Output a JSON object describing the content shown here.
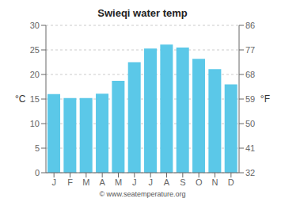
{
  "chart_data": {
    "type": "bar",
    "title": "Swieqi water temp",
    "categories": [
      "J",
      "F",
      "M",
      "A",
      "M",
      "J",
      "J",
      "A",
      "S",
      "O",
      "N",
      "D"
    ],
    "values": [
      16.0,
      15.2,
      15.2,
      16.1,
      18.7,
      22.5,
      25.3,
      26.1,
      25.5,
      23.2,
      21.1,
      18.0
    ],
    "color": "#5bc8e8",
    "ylim": [
      0,
      30
    ],
    "yticks": [
      0,
      5,
      10,
      15,
      20,
      25,
      30
    ],
    "y2lim": [
      32,
      86
    ],
    "y2ticks": [
      32,
      41,
      50,
      59,
      68,
      77,
      86
    ],
    "ylabel": "°C",
    "y2label": "°F",
    "annotations": [
      "© www.seatemperature.org"
    ],
    "grid": true
  }
}
